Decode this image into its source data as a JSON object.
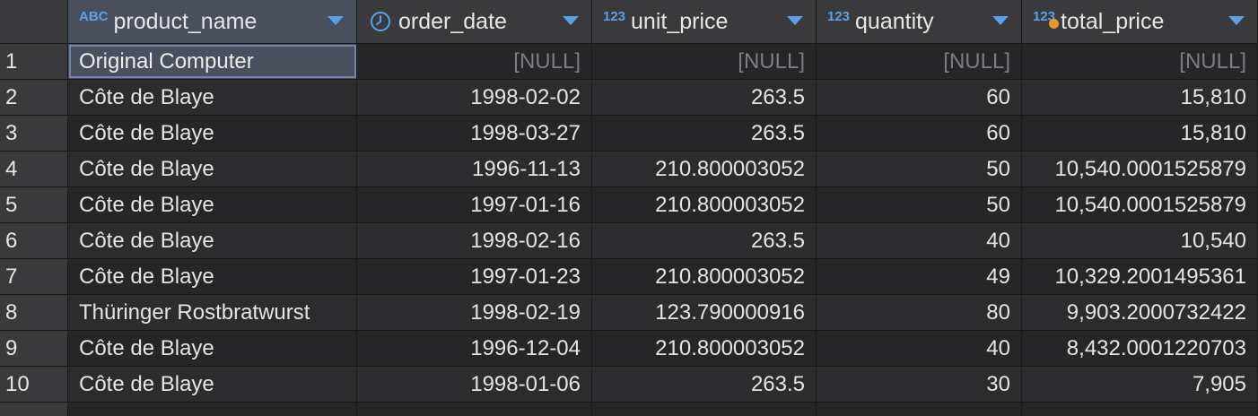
{
  "columns": [
    {
      "type_icon": "ABC",
      "label": "product_name"
    },
    {
      "type_icon": "clock-icon",
      "label": "order_date"
    },
    {
      "type_icon": "123",
      "label": "unit_price"
    },
    {
      "type_icon": "123",
      "label": "quantity"
    },
    {
      "type_icon": "123",
      "label": "total_price"
    }
  ],
  "rows": [
    {
      "num": "1",
      "product_name": "Original Computer",
      "order_date": "[NULL]",
      "unit_price": "[NULL]",
      "quantity": "[NULL]",
      "total_price": "[NULL]"
    },
    {
      "num": "2",
      "product_name": "Côte de Blaye",
      "order_date": "1998-02-02",
      "unit_price": "263.5",
      "quantity": "60",
      "total_price": "15,810"
    },
    {
      "num": "3",
      "product_name": "Côte de Blaye",
      "order_date": "1998-03-27",
      "unit_price": "263.5",
      "quantity": "60",
      "total_price": "15,810"
    },
    {
      "num": "4",
      "product_name": "Côte de Blaye",
      "order_date": "1996-11-13",
      "unit_price": "210.800003052",
      "quantity": "50",
      "total_price": "10,540.0001525879"
    },
    {
      "num": "5",
      "product_name": "Côte de Blaye",
      "order_date": "1997-01-16",
      "unit_price": "210.800003052",
      "quantity": "50",
      "total_price": "10,540.0001525879"
    },
    {
      "num": "6",
      "product_name": "Côte de Blaye",
      "order_date": "1998-02-16",
      "unit_price": "263.5",
      "quantity": "40",
      "total_price": "10,540"
    },
    {
      "num": "7",
      "product_name": "Côte de Blaye",
      "order_date": "1997-01-23",
      "unit_price": "210.800003052",
      "quantity": "49",
      "total_price": "10,329.2001495361"
    },
    {
      "num": "8",
      "product_name": "Thüringer Rostbratwurst",
      "order_date": "1998-02-19",
      "unit_price": "123.790000916",
      "quantity": "80",
      "total_price": "9,903.2000732422"
    },
    {
      "num": "9",
      "product_name": "Côte de Blaye",
      "order_date": "1996-12-04",
      "unit_price": "210.800003052",
      "quantity": "40",
      "total_price": "8,432.0001220703"
    },
    {
      "num": "10",
      "product_name": "Côte de Blaye",
      "order_date": "1998-01-06",
      "unit_price": "263.5",
      "quantity": "30",
      "total_price": "7,905"
    }
  ],
  "selected": {
    "row": 0,
    "column": "product_name"
  },
  "colors": {
    "type_icon": "#5aa0e6",
    "sort_arrow": "#5aa0e6",
    "modified_dot": "#e8962f",
    "null_text": "#7d7d80"
  }
}
